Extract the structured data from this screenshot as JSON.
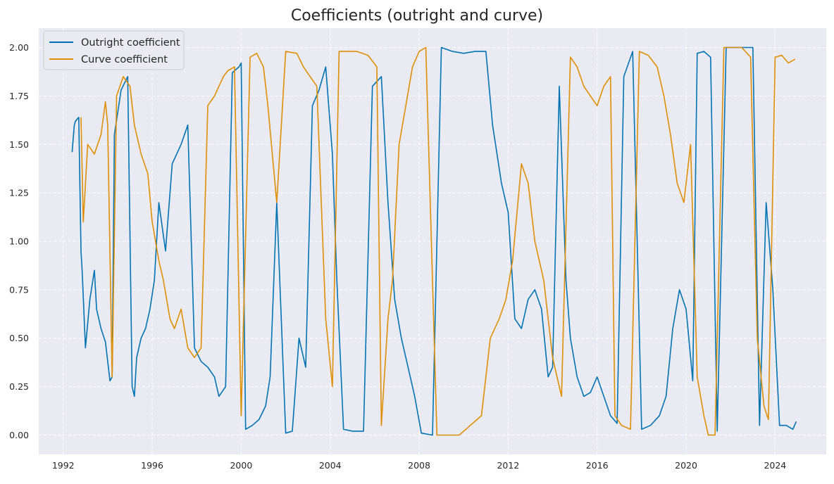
{
  "chart_data": {
    "type": "line",
    "title": "Coefficients (outright and curve)",
    "xlabel": "",
    "ylabel": "",
    "xlim": [
      1990.9,
      2026.3
    ],
    "ylim": [
      -0.1,
      2.1
    ],
    "grid": true,
    "legend_position": "top-left",
    "x_ticks": [
      1992,
      1996,
      2000,
      2004,
      2008,
      2012,
      2016,
      2020,
      2024
    ],
    "x_tick_labels": [
      "1992",
      "1996",
      "2000",
      "2004",
      "2008",
      "2012",
      "2016",
      "2020",
      "2024"
    ],
    "y_ticks": [
      0.0,
      0.25,
      0.5,
      0.75,
      1.0,
      1.25,
      1.5,
      1.75,
      2.0
    ],
    "y_tick_labels": [
      "0.00",
      "0.25",
      "0.50",
      "0.75",
      "1.00",
      "1.25",
      "1.50",
      "1.75",
      "2.00"
    ],
    "colors": {
      "outright": "#0173b2",
      "curve": "#de8f05",
      "plot_bg": "#eaeaf2",
      "grid": "#ffffff"
    },
    "series": [
      {
        "name": "Outright coefficient",
        "color": "#0173b2",
        "x": [
          1992.4,
          1992.5,
          1992.55,
          1992.7,
          1992.8,
          1992.85,
          1993.0,
          1993.2,
          1993.4,
          1993.5,
          1993.7,
          1993.9,
          1994.1,
          1994.2,
          1994.3,
          1994.6,
          1994.9,
          1995.1,
          1995.2,
          1995.3,
          1995.5,
          1995.7,
          1995.9,
          1996.1,
          1996.3,
          1996.6,
          1996.9,
          1997.1,
          1997.3,
          1997.6,
          1997.9,
          1998.2,
          1998.5,
          1998.8,
          1999.0,
          1999.3,
          1999.6,
          1999.9,
          2000.0,
          2000.2,
          2000.5,
          2000.8,
          2001.1,
          2001.3,
          2001.6,
          2002.0,
          2002.3,
          2002.6,
          2002.9,
          2003.2,
          2003.5,
          2003.8,
          2004.1,
          2004.3,
          2004.6,
          2005.0,
          2005.5,
          2005.9,
          2006.3,
          2006.6,
          2006.9,
          2007.2,
          2007.5,
          2007.8,
          2008.1,
          2008.6,
          2009.0,
          2009.5,
          2010.0,
          2010.5,
          2011.0,
          2011.3,
          2011.7,
          2012.0,
          2012.3,
          2012.6,
          2012.9,
          2013.2,
          2013.5,
          2013.8,
          2014.0,
          2014.3,
          2014.6,
          2014.8,
          2015.1,
          2015.4,
          2015.7,
          2016.0,
          2016.3,
          2016.6,
          2016.9,
          2017.2,
          2017.6,
          2018.0,
          2018.4,
          2018.8,
          2019.1,
          2019.4,
          2019.7,
          2020.0,
          2020.3,
          2020.5,
          2020.8,
          2021.1,
          2021.4,
          2021.8,
          2022.2,
          2022.6,
          2023.0,
          2023.3,
          2023.6,
          2023.9,
          2024.2,
          2024.5,
          2024.8,
          2024.95
        ],
        "values": [
          1.46,
          1.6,
          1.62,
          1.64,
          0.95,
          0.85,
          0.45,
          0.7,
          0.85,
          0.65,
          0.55,
          0.48,
          0.28,
          0.3,
          1.55,
          1.78,
          1.85,
          0.25,
          0.2,
          0.4,
          0.5,
          0.55,
          0.65,
          0.8,
          1.2,
          0.95,
          1.4,
          1.45,
          1.5,
          1.6,
          0.45,
          0.38,
          0.35,
          0.3,
          0.2,
          0.25,
          1.87,
          1.9,
          1.92,
          0.03,
          0.05,
          0.08,
          0.15,
          0.3,
          1.2,
          0.01,
          0.02,
          0.5,
          0.35,
          1.7,
          1.78,
          1.9,
          1.45,
          0.8,
          0.03,
          0.02,
          0.02,
          1.8,
          1.85,
          1.2,
          0.7,
          0.5,
          0.35,
          0.2,
          0.01,
          0.0,
          2.0,
          1.98,
          1.97,
          1.98,
          1.98,
          1.6,
          1.3,
          1.15,
          0.6,
          0.55,
          0.7,
          0.75,
          0.65,
          0.3,
          0.35,
          1.8,
          0.8,
          0.5,
          0.3,
          0.2,
          0.22,
          0.3,
          0.2,
          0.1,
          0.06,
          1.85,
          1.98,
          0.03,
          0.05,
          0.1,
          0.2,
          0.55,
          0.75,
          0.65,
          0.28,
          1.97,
          1.98,
          1.95,
          0.02,
          2.0,
          2.0,
          2.0,
          2.0,
          0.05,
          1.2,
          0.75,
          0.05,
          0.05,
          0.03,
          0.07
        ]
      },
      {
        "name": "Curve coefficient",
        "color": "#de8f05",
        "x": [
          1992.8,
          1992.9,
          1993.1,
          1993.4,
          1993.7,
          1993.9,
          1994.0,
          1994.2,
          1994.4,
          1994.7,
          1995.0,
          1995.2,
          1995.5,
          1995.8,
          1996.0,
          1996.3,
          1996.5,
          1996.8,
          1997.0,
          1997.3,
          1997.6,
          1997.9,
          1998.2,
          1998.5,
          1998.8,
          1999.2,
          1999.4,
          1999.7,
          2000.0,
          2000.4,
          2000.7,
          2001.0,
          2001.2,
          2001.6,
          2002.0,
          2002.5,
          2002.8,
          2003.1,
          2003.4,
          2003.8,
          2004.1,
          2004.4,
          2004.7,
          2005.2,
          2005.7,
          2006.1,
          2006.3,
          2006.6,
          2006.8,
          2007.1,
          2007.4,
          2007.7,
          2008.0,
          2008.3,
          2008.8,
          2009.3,
          2009.8,
          2010.3,
          2010.8,
          2011.2,
          2011.6,
          2011.9,
          2012.2,
          2012.6,
          2012.9,
          2013.2,
          2013.6,
          2014.0,
          2014.4,
          2014.8,
          2015.1,
          2015.4,
          2015.7,
          2016.0,
          2016.3,
          2016.6,
          2016.8,
          2017.1,
          2017.5,
          2017.9,
          2018.3,
          2018.7,
          2019.0,
          2019.3,
          2019.6,
          2019.9,
          2020.2,
          2020.5,
          2020.8,
          2021.0,
          2021.3,
          2021.7,
          2022.1,
          2022.5,
          2022.9,
          2023.2,
          2023.5,
          2023.7,
          2024.0,
          2024.3,
          2024.6,
          2024.9
        ],
        "values": [
          1.64,
          1.1,
          1.5,
          1.45,
          1.55,
          1.72,
          1.6,
          0.3,
          1.75,
          1.85,
          1.8,
          1.6,
          1.45,
          1.35,
          1.1,
          0.9,
          0.8,
          0.6,
          0.55,
          0.65,
          0.45,
          0.4,
          0.45,
          1.7,
          1.75,
          1.85,
          1.88,
          1.9,
          0.1,
          1.95,
          1.97,
          1.9,
          1.7,
          1.2,
          1.98,
          1.97,
          1.9,
          1.85,
          1.8,
          0.6,
          0.25,
          1.98,
          1.98,
          1.98,
          1.96,
          1.9,
          0.05,
          0.6,
          0.8,
          1.5,
          1.7,
          1.9,
          1.98,
          2.0,
          0.0,
          0.0,
          0.0,
          0.05,
          0.1,
          0.5,
          0.6,
          0.7,
          0.9,
          1.4,
          1.3,
          1.0,
          0.8,
          0.4,
          0.2,
          1.95,
          1.9,
          1.8,
          1.75,
          1.7,
          1.8,
          1.85,
          0.1,
          0.05,
          0.03,
          1.98,
          1.96,
          1.9,
          1.75,
          1.55,
          1.3,
          1.2,
          1.5,
          0.3,
          0.1,
          0.0,
          0.0,
          2.0,
          2.0,
          2.0,
          1.95,
          0.5,
          0.15,
          0.08,
          1.95,
          1.96,
          1.92,
          1.94
        ]
      }
    ]
  }
}
